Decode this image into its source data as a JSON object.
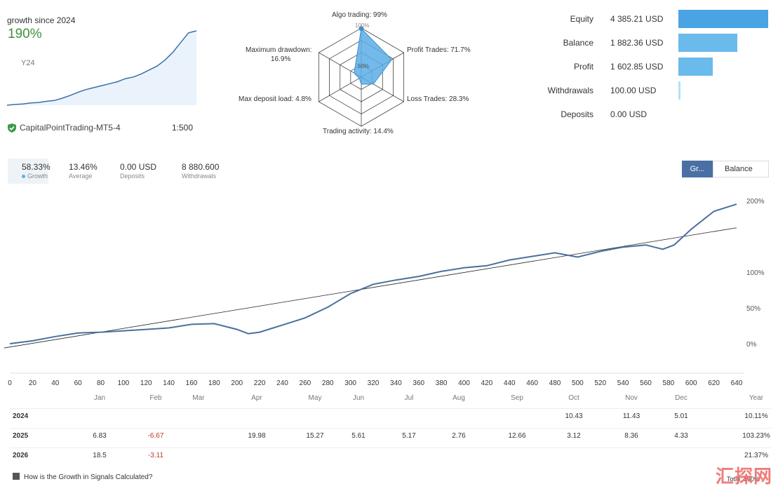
{
  "mini_growth": {
    "title": "growth since 2024",
    "value": "190%",
    "sub": "Y24",
    "points": [
      0,
      2,
      3,
      6,
      7,
      10,
      12,
      18,
      25,
      33,
      40,
      45,
      50,
      55,
      60,
      68,
      72,
      80,
      90,
      100,
      115,
      135,
      160,
      185,
      190
    ]
  },
  "account": {
    "name": "CapitalPointTrading-MT5-4",
    "leverage": "1:500"
  },
  "radar": {
    "labels": {
      "top": "Algo trading: 99%",
      "right_top": "Profit Trades: 71.7%",
      "right_bottom": "Loss Trades: 28.3%",
      "bottom": "Trading activity: 14.4%",
      "left_bottom": "Max deposit load: 4.8%",
      "left_top": "Maximum drawdown:",
      "left_top_value": "16.9%"
    },
    "center_top": "100%",
    "center_mid": "50%",
    "values": [
      99,
      71.7,
      28.3,
      14.4,
      4.8,
      16.9
    ]
  },
  "equity": {
    "rows": [
      {
        "name": "Equity",
        "value": "4 385.21 USD",
        "level": 1.0,
        "color": "#4aa3e3"
      },
      {
        "name": "Balance",
        "value": "1 882.36 USD",
        "level": 0.66,
        "color": "#6bbaec"
      },
      {
        "name": "Profit",
        "value": "1 602.85 USD",
        "level": 0.38,
        "color": "#6bbaec"
      },
      {
        "name": "Withdrawals",
        "value": "100.00 USD",
        "level": 0.02,
        "color": "#b6e0f4"
      },
      {
        "name": "Deposits",
        "value": "0.00 USD",
        "level": 0.0,
        "color": "#6bbaec"
      }
    ]
  },
  "tabs": [
    {
      "value": "58.33%",
      "label": "Growth",
      "active": true
    },
    {
      "value": "13.46%",
      "label": "Average",
      "active": false
    },
    {
      "value": "0.00 USD",
      "label": "Deposits",
      "active": false
    },
    {
      "value": "8 880.600",
      "label": "Withdrawals",
      "active": false
    }
  ],
  "buttons": {
    "growth": "Gr...",
    "balance": "Balance"
  },
  "chart_data": {
    "type": "line",
    "title": "",
    "xlabel": "",
    "ylabel": "",
    "x_ticks": [
      0,
      20,
      40,
      60,
      80,
      100,
      120,
      140,
      160,
      180,
      200,
      220,
      240,
      260,
      280,
      300,
      320,
      340,
      360,
      380,
      400,
      420,
      440,
      460,
      480,
      500,
      520,
      540,
      560,
      580,
      600,
      620,
      640
    ],
    "y_tick_labels": [
      "200%",
      "100%",
      "50%",
      "0%"
    ],
    "xlim": [
      0,
      640
    ],
    "series": [
      {
        "x": [
          0,
          20,
          40,
          60,
          80,
          100,
          120,
          140,
          160,
          180,
          200,
          210,
          220,
          230,
          240,
          260,
          280,
          300,
          320,
          340,
          360,
          380,
          400,
          420,
          440,
          460,
          480,
          500,
          520,
          540,
          560,
          575,
          585,
          600,
          620,
          640
        ],
        "y": [
          2,
          6,
          12,
          17,
          18,
          20,
          22,
          24,
          29,
          30,
          22,
          16,
          18,
          23,
          28,
          38,
          53,
          72,
          85,
          91,
          96,
          103,
          108,
          111,
          119,
          124,
          129,
          123,
          131,
          137,
          140,
          134,
          140,
          162,
          187,
          197
        ]
      }
    ],
    "trendline": {
      "x": [
        0,
        640
      ],
      "y": [
        -4,
        164
      ]
    }
  },
  "monthly_table": {
    "headers": [
      "Jan",
      "Feb",
      "Mar",
      "Apr",
      "May",
      "Jun",
      "Jul",
      "Aug",
      "Sep",
      "Oct",
      "Nov",
      "Dec",
      "Year"
    ],
    "rows": [
      {
        "year": "2024",
        "cells": [
          "",
          "",
          "",
          "",
          "",
          "",
          "",
          "",
          "",
          "10.43",
          "11.43",
          "5.01",
          "10.11%"
        ]
      },
      {
        "year": "2025",
        "cells": [
          "6.83",
          "-6.67",
          "",
          "19.98",
          "15.27",
          "5.61",
          "5.17",
          "2.76",
          "12.66",
          "3.12",
          "8.36",
          "4.33",
          "103.23%"
        ]
      },
      {
        "year": "2026",
        "cells": [
          "18.5",
          "-3.11",
          "",
          "",
          "",
          "",
          "",
          "",
          "",
          "",
          "",
          "",
          "21.37%"
        ]
      }
    ],
    "neg_marks": [
      [
        1,
        1
      ],
      [
        2,
        1
      ]
    ]
  },
  "footer": {
    "link": "How is the Growth in Signals Calculated?",
    "total": "Total: 190%"
  },
  "watermark": "汇探网"
}
